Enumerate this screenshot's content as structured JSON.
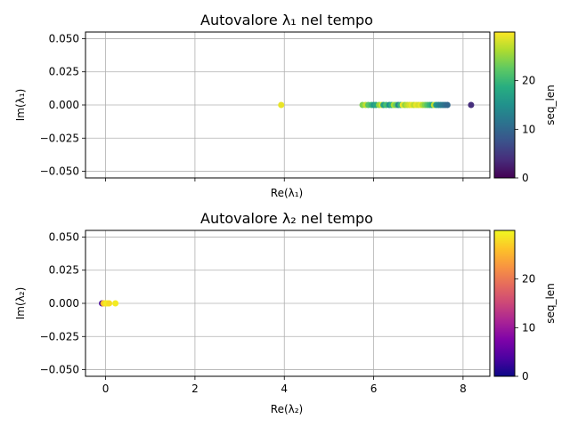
{
  "chart_data": [
    {
      "type": "scatter",
      "title": "Autovalore λ₁ nel tempo",
      "xlabel": "Re(λ₁)",
      "ylabel": "Im(λ₁)",
      "xlim": [
        -0.45,
        8.6
      ],
      "ylim": [
        -0.055,
        0.055
      ],
      "xticks": [
        0,
        2,
        4,
        6,
        8
      ],
      "show_xtick_labels": false,
      "yticks": [
        -0.05,
        -0.025,
        0.0,
        0.025,
        0.05
      ],
      "ytick_labels": [
        "−0.050",
        "−0.025",
        "0.000",
        "0.025",
        "0.050"
      ],
      "grid": true,
      "colormap": "viridis",
      "colorbar": {
        "label": "seq_len",
        "range": [
          0,
          30
        ],
        "ticks": [
          0,
          10,
          20
        ],
        "tick_labels": [
          "0",
          "10",
          "20"
        ]
      },
      "series": [
        {
          "x": [
            3.93,
            5.75,
            5.82,
            5.88,
            5.95,
            6.0,
            6.05,
            6.12,
            6.18,
            6.22,
            6.28,
            6.35,
            6.4,
            6.45,
            6.5,
            6.55,
            6.6,
            6.65,
            6.7,
            6.75,
            6.8,
            6.85,
            6.9,
            6.95,
            7.0,
            7.05,
            7.1,
            7.15,
            7.2,
            7.25,
            7.3,
            7.35,
            7.4,
            7.45,
            7.5,
            7.55,
            7.6,
            7.65,
            8.18
          ],
          "y": [
            0,
            0,
            0,
            0,
            0,
            0,
            0,
            0,
            0,
            0,
            0,
            0,
            0,
            0,
            0,
            0,
            0,
            0,
            0,
            0,
            0,
            0,
            0,
            0,
            0,
            0,
            0,
            0,
            0,
            0,
            0,
            0,
            0,
            0,
            0,
            0,
            0,
            0,
            0
          ],
          "c": [
            29,
            24,
            27,
            22,
            20,
            16,
            18,
            25,
            28,
            17,
            21,
            15,
            19,
            26,
            23,
            14,
            20,
            29,
            25,
            27,
            28,
            29,
            27,
            29,
            28,
            29,
            26,
            24,
            22,
            20,
            18,
            27,
            16,
            14,
            13,
            12,
            11,
            10,
            4
          ]
        }
      ]
    },
    {
      "type": "scatter",
      "title": "Autovalore λ₂ nel tempo",
      "xlabel": "Re(λ₂)",
      "ylabel": "Im(λ₂)",
      "xlim": [
        -0.45,
        8.6
      ],
      "ylim": [
        -0.055,
        0.055
      ],
      "xticks": [
        0,
        2,
        4,
        6,
        8
      ],
      "xtick_labels": [
        "0",
        "2",
        "4",
        "6",
        "8"
      ],
      "yticks": [
        -0.05,
        -0.025,
        0.0,
        0.025,
        0.05
      ],
      "ytick_labels": [
        "−0.050",
        "−0.025",
        "0.000",
        "0.025",
        "0.050"
      ],
      "grid": true,
      "colormap": "plasma",
      "colorbar": {
        "label": "seq_len",
        "range": [
          0,
          30
        ],
        "ticks": [
          0,
          10,
          20
        ],
        "tick_labels": [
          "0",
          "10",
          "20"
        ]
      },
      "series": [
        {
          "x": [
            -0.08,
            -0.05,
            -0.02,
            0.0,
            0.02,
            0.05,
            0.08,
            0.22
          ],
          "y": [
            0,
            0,
            0,
            0,
            0,
            0,
            0,
            0
          ],
          "c": [
            3,
            25,
            27,
            28,
            29,
            29,
            28,
            29
          ]
        }
      ]
    }
  ]
}
